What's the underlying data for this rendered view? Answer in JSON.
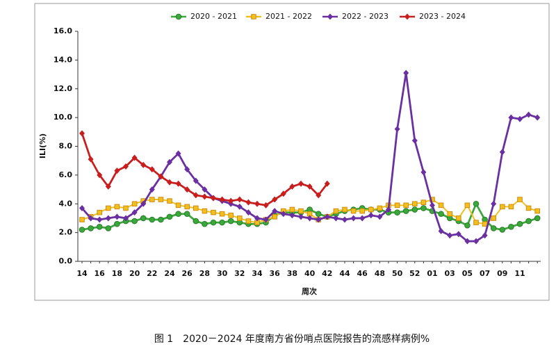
{
  "chart_data": {
    "type": "line",
    "caption": "图 1　2020－2024 年度南方省份哨点医院报告的流感样病例%",
    "x_label": "周次",
    "y_label": "ILI(%)",
    "categories": [
      "14",
      null,
      "16",
      null,
      "18",
      null,
      "20",
      null,
      "22",
      null,
      "24",
      null,
      "26",
      null,
      "28",
      null,
      "30",
      null,
      "32",
      null,
      "34",
      null,
      "36",
      null,
      "38",
      null,
      "40",
      null,
      "42",
      null,
      "44",
      null,
      "46",
      null,
      "48",
      null,
      "50",
      null,
      "52",
      null,
      "01",
      null,
      "03",
      null,
      "05",
      null,
      "07",
      null,
      "09",
      null,
      "11",
      null,
      null
    ],
    "ylim": [
      0,
      16
    ],
    "yticks": [
      {
        "value": 0,
        "label": "0.0"
      },
      {
        "value": 2,
        "label": "2.0"
      },
      {
        "value": 4,
        "label": "4.0"
      },
      {
        "value": 6,
        "label": "6.0"
      },
      {
        "value": 8,
        "label": "8.0"
      },
      {
        "value": 10,
        "label": "10.0"
      },
      {
        "value": 12,
        "label": "12.0"
      },
      {
        "value": 14,
        "label": "14.0"
      },
      {
        "value": 16,
        "label": "16.0"
      }
    ],
    "legend": "top",
    "series": [
      {
        "name": "2020 - 2021",
        "color": "#3aa83a",
        "marker": "circle",
        "values": [
          2.2,
          2.3,
          2.4,
          2.3,
          2.6,
          2.8,
          2.8,
          3.0,
          2.9,
          2.9,
          3.1,
          3.3,
          3.3,
          2.8,
          2.6,
          2.7,
          2.7,
          2.8,
          2.7,
          2.6,
          2.6,
          2.7,
          3.2,
          3.4,
          3.4,
          3.4,
          3.6,
          3.3,
          3.1,
          3.3,
          3.5,
          3.6,
          3.7,
          3.6,
          3.6,
          3.4,
          3.4,
          3.5,
          3.6,
          3.7,
          3.5,
          3.3,
          3.0,
          2.8,
          2.5,
          4.0,
          2.9,
          2.3,
          2.2,
          2.4,
          2.6,
          2.8,
          3.0
        ]
      },
      {
        "name": "2021 - 2022",
        "color": "#f0c020",
        "marker": "square",
        "values": [
          2.9,
          3.1,
          3.4,
          3.7,
          3.8,
          3.7,
          4.0,
          4.2,
          4.3,
          4.3,
          4.2,
          3.9,
          3.8,
          3.7,
          3.5,
          3.4,
          3.3,
          3.2,
          3.0,
          2.8,
          2.7,
          2.9,
          3.1,
          3.5,
          3.6,
          3.5,
          3.3,
          2.9,
          3.1,
          3.5,
          3.6,
          3.5,
          3.5,
          3.6,
          3.7,
          3.9,
          3.9,
          3.9,
          4.0,
          4.1,
          4.3,
          3.9,
          3.3,
          3.0,
          3.9,
          2.7,
          2.6,
          3.0,
          3.8,
          3.8,
          4.3,
          3.7,
          3.5
        ]
      },
      {
        "name": "2022 - 2023",
        "color": "#6a2fa0",
        "marker": "diamond",
        "values": [
          3.7,
          3.0,
          2.9,
          3.0,
          3.1,
          3.0,
          3.4,
          4.0,
          5.0,
          5.9,
          6.9,
          7.5,
          6.4,
          5.6,
          5.0,
          4.4,
          4.2,
          4.0,
          3.8,
          3.4,
          3.0,
          2.9,
          3.5,
          3.3,
          3.2,
          3.1,
          3.0,
          2.9,
          3.1,
          3.0,
          2.9,
          3.0,
          3.0,
          3.2,
          3.1,
          3.6,
          9.2,
          13.1,
          8.4,
          6.2,
          3.9,
          2.1,
          1.8,
          1.9,
          1.4,
          1.4,
          1.8,
          4.0,
          7.6,
          10.0,
          9.9,
          10.2,
          10.0
        ]
      },
      {
        "name": "2023 - 2024",
        "color": "#c81e1e",
        "marker": "diamond",
        "values": [
          8.9,
          7.1,
          6.0,
          5.2,
          6.3,
          6.6,
          7.2,
          6.7,
          6.4,
          5.9,
          5.5,
          5.4,
          5.0,
          4.6,
          4.5,
          4.4,
          4.3,
          4.2,
          4.3,
          4.1,
          4.0,
          3.9,
          4.3,
          4.7,
          5.2,
          5.4,
          5.2,
          4.6,
          5.4,
          null,
          null,
          null,
          null,
          null,
          null,
          null,
          null,
          null,
          null,
          null,
          null,
          null,
          null,
          null,
          null,
          null,
          null,
          null,
          null,
          null,
          null,
          null,
          null
        ]
      }
    ]
  }
}
